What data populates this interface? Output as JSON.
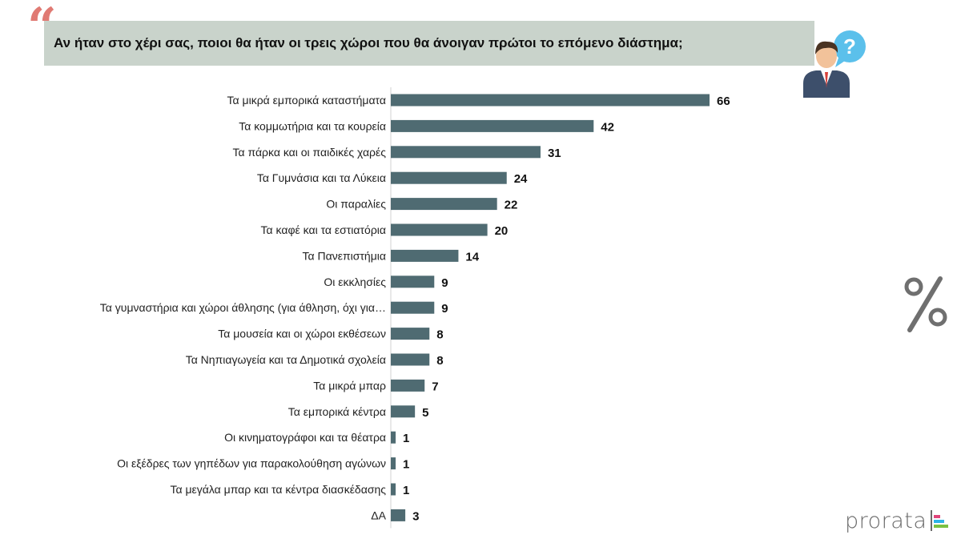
{
  "header": {
    "quote_glyph": "“",
    "title": "Αν ήταν στο χέρι σας, ποιοι θα ήταν οι τρεις χώροι που θα άνοιγαν πρώτοι το επόμενο διάστημα;"
  },
  "icons": {
    "person": "person-question-icon",
    "percent": "percent-icon",
    "question_glyph": "?",
    "quote_color": "#e07a73",
    "question_bubble_color": "#5bc0eb"
  },
  "colors": {
    "bar": "#4f6b72",
    "title_bg": "#c9d3cb"
  },
  "logo": {
    "text": "prorata",
    "bar_colors": [
      "#e0457b",
      "#2db3e8",
      "#7ac143"
    ]
  },
  "chart_data": {
    "type": "bar",
    "orientation": "horizontal",
    "categories": [
      "Τα μικρά εμπορικά καταστήματα",
      "Τα κομμωτήρια και τα κουρεία",
      "Τα πάρκα και οι παιδικές χαρές",
      "Τα Γυμνάσια και τα Λύκεια",
      "Οι παραλίες",
      "Τα καφέ και τα εστιατόρια",
      "Τα Πανεπιστήμια",
      "Οι εκκλησίες",
      "Τα γυμναστήρια και χώροι άθλησης (για άθληση, όχι για…",
      "Τα μουσεία και οι χώροι εκθέσεων",
      "Τα Νηπιαγωγεία και τα Δημοτικά σχολεία",
      "Τα μικρά μπαρ",
      "Τα εμπορικά κέντρα",
      "Οι κινηματογράφοι και τα θέατρα",
      "Οι εξέδρες των γηπέδων για παρακολούθηση αγώνων",
      "Τα μεγάλα μπαρ και τα κέντρα διασκέδασης",
      "ΔΑ"
    ],
    "values": [
      66,
      42,
      31,
      24,
      22,
      20,
      14,
      9,
      9,
      8,
      8,
      7,
      5,
      1,
      1,
      1,
      3
    ],
    "xlim": [
      0,
      66
    ],
    "grid": false,
    "legend": "none"
  }
}
